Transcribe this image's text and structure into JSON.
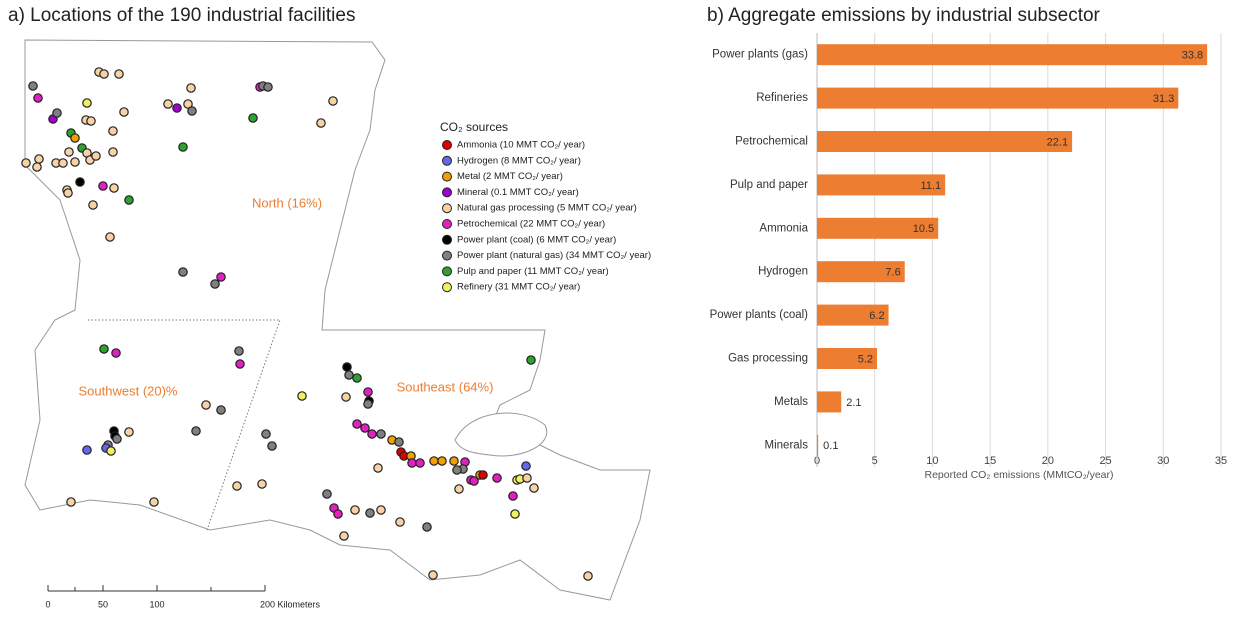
{
  "map": {
    "title": "a) Locations of the 190 industrial facilities",
    "legend_title": "CO₂ sources",
    "legend": [
      {
        "label": "Ammonia (10 MMT CO₂/ year)",
        "color": "#e00000"
      },
      {
        "label": "Hydrogen (8 MMT CO₂/ year)",
        "color": "#6666e8"
      },
      {
        "label": "Metal (2 MMT CO₂/ year)",
        "color": "#f0a000"
      },
      {
        "label": "Mineral (0.1 MMT CO₂/ year)",
        "color": "#a000d0"
      },
      {
        "label": "Natural gas processing (5 MMT CO₂/ year)",
        "color": "#f7d2a6"
      },
      {
        "label": "Petrochemical (22 MMT CO₂/ year)",
        "color": "#e020c0"
      },
      {
        "label": "Power plant (coal) (6 MMT CO₂/ year)",
        "color": "#000000"
      },
      {
        "label": "Power plant (natural gas) (34 MMT CO₂/ year)",
        "color": "#808080"
      },
      {
        "label": "Pulp and paper (11 MMT CO₂/ year)",
        "color": "#30a030"
      },
      {
        "label": "Refinery (31 MMT CO₂/ year)",
        "color": "#f0f060"
      }
    ],
    "regions": [
      "North (16%)",
      "Southwest (20)%",
      "Southeast (64%)"
    ],
    "scale_labels": [
      "0",
      "50",
      "100",
      "200 Kilometers"
    ]
  },
  "chart_data": {
    "type": "bar",
    "orientation": "horizontal",
    "title": "b)  Aggregate emissions by industrial subsector",
    "x_label": "Reported CO₂ emissions (MMtCO₂/year)",
    "categories": [
      "Power plants (gas)",
      "Refineries",
      "Petrochemical",
      "Pulp and paper",
      "Ammonia",
      "Hydrogen",
      "Power plants (coal)",
      "Gas processing",
      "Metals",
      "Minerals"
    ],
    "values": [
      33.8,
      31.3,
      22.1,
      11.1,
      10.5,
      7.6,
      6.2,
      5.2,
      2.1,
      0.1
    ],
    "color": "#ed7d31",
    "xlim": [
      0,
      35
    ],
    "xticks": [
      0,
      5,
      10,
      15,
      20,
      25,
      30,
      35
    ],
    "grid": true
  }
}
